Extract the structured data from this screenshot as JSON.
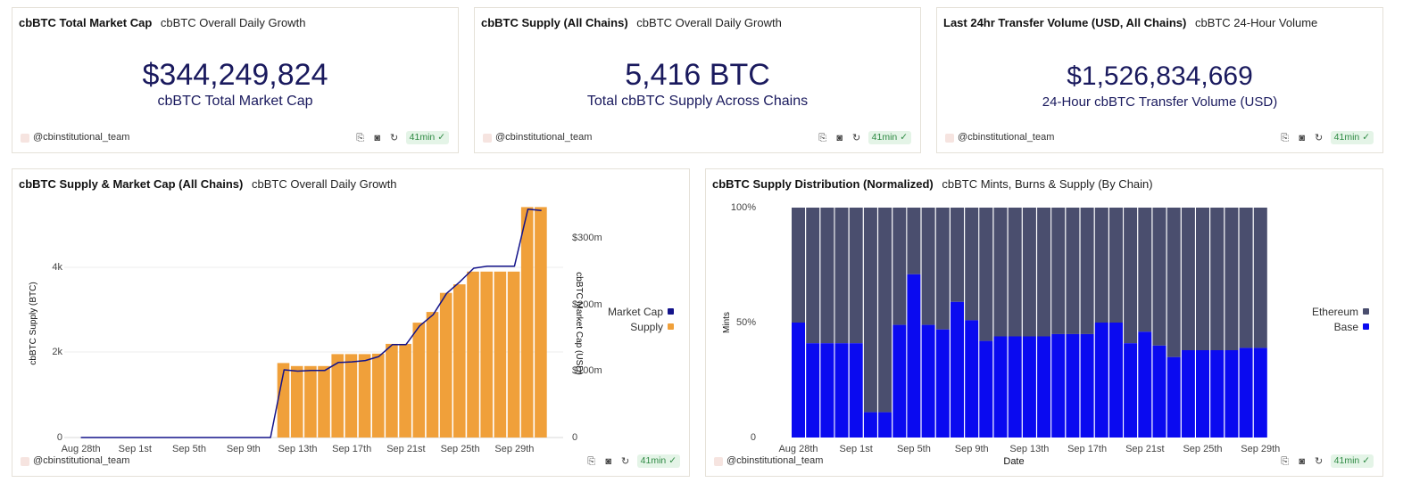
{
  "cards": {
    "market_cap": {
      "title": "cbBTC Total Market Cap",
      "subtitle": "cbBTC Overall Daily Growth",
      "value": "$344,249,824",
      "label": "cbBTC Total Market Cap"
    },
    "supply": {
      "title": "cbBTC Supply (All Chains)",
      "subtitle": "cbBTC Overall Daily Growth",
      "value": "5,416 BTC",
      "label": "Total cbBTC Supply Across Chains"
    },
    "volume": {
      "title": "Last 24hr Transfer Volume (USD, All Chains)",
      "subtitle": "cbBTC 24-Hour Volume",
      "value": "$1,526,834,669",
      "label": "24-Hour cbBTC Transfer Volume (USD)"
    },
    "supply_chart": {
      "title": "cbBTC Supply & Market Cap (All Chains)",
      "subtitle": "cbBTC Overall Daily Growth"
    },
    "distribution_chart": {
      "title": "cbBTC Supply Distribution (Normalized)",
      "subtitle": "cbBTC Mints, Burns & Supply (By Chain)"
    }
  },
  "footer": {
    "user": "@cbinstitutional_team",
    "refresh_label": "41min",
    "icons": [
      "embed-icon",
      "camera-icon",
      "refresh-icon",
      "check-circle-icon"
    ]
  },
  "colors": {
    "supply_bar": "#f0a03a",
    "market_cap_line": "#13138a",
    "ethereum": "#4a4e6e",
    "base": "#0a0af0",
    "value_text": "#1a1a5e"
  },
  "chart_data": [
    {
      "type": "bar",
      "x": [
        "Aug 28th",
        "Aug 29th",
        "Aug 30th",
        "Aug 31st",
        "Sep 1st",
        "Sep 2nd",
        "Sep 3rd",
        "Sep 4th",
        "Sep 5th",
        "Sep 6th",
        "Sep 7th",
        "Sep 8th",
        "Sep 9th",
        "Sep 10th",
        "Sep 11th",
        "Sep 12th",
        "Sep 13th",
        "Sep 14th",
        "Sep 15th",
        "Sep 16th",
        "Sep 17th",
        "Sep 18th",
        "Sep 19th",
        "Sep 20th",
        "Sep 21st",
        "Sep 22nd",
        "Sep 23rd",
        "Sep 24th",
        "Sep 25th",
        "Sep 26th",
        "Sep 27th",
        "Sep 28th",
        "Sep 29th",
        "Sep 30th",
        "Oct 1st"
      ],
      "x_ticks": [
        "Aug 28th",
        "Sep 1st",
        "Sep 5th",
        "Sep 9th",
        "Sep 13th",
        "Sep 17th",
        "Sep 21st",
        "Sep 25th",
        "Sep 29th"
      ],
      "series": [
        {
          "name": "Supply",
          "type": "bar",
          "axis": "left",
          "values": [
            0,
            0,
            0,
            0,
            0,
            0,
            0,
            0,
            0,
            0,
            0,
            0,
            0,
            0,
            0,
            1750,
            1680,
            1680,
            1680,
            1960,
            1960,
            1960,
            1970,
            2200,
            2200,
            2700,
            2950,
            3400,
            3600,
            3900,
            3900,
            3900,
            3900,
            5416,
            5416
          ]
        },
        {
          "name": "Market Cap",
          "type": "line",
          "axis": "right",
          "values": [
            0,
            0,
            0,
            0,
            0,
            0,
            0,
            0,
            0,
            0,
            0,
            0,
            0,
            0,
            0,
            102,
            100,
            101,
            101,
            113,
            114,
            116,
            122,
            140,
            140,
            168,
            185,
            217,
            235,
            255,
            258,
            258,
            258,
            344,
            342
          ]
        }
      ],
      "ylabel": "cbBTC Supply (BTC)",
      "ylim": [
        0,
        5416
      ],
      "y_ticks": [
        "0",
        "2k",
        "4k"
      ],
      "y2label": "cbBTC Market Cap (USD)",
      "y2lim": [
        0,
        344
      ],
      "y2_ticks": [
        "0",
        "$100m",
        "$200m",
        "$300m"
      ],
      "legend": "right",
      "legend_entries": [
        "Market Cap",
        "Supply"
      ],
      "grid": true
    },
    {
      "type": "bar",
      "stacked": true,
      "normalized": true,
      "x": [
        "Aug 28th",
        "Aug 29th",
        "Aug 30th",
        "Aug 31st",
        "Sep 1st",
        "Sep 2nd",
        "Sep 3rd",
        "Sep 4th",
        "Sep 5th",
        "Sep 6th",
        "Sep 7th",
        "Sep 8th",
        "Sep 9th",
        "Sep 10th",
        "Sep 11th",
        "Sep 12th",
        "Sep 13th",
        "Sep 14th",
        "Sep 15th",
        "Sep 16th",
        "Sep 17th",
        "Sep 18th",
        "Sep 19th",
        "Sep 20th",
        "Sep 21st",
        "Sep 22nd",
        "Sep 23rd",
        "Sep 24th",
        "Sep 25th",
        "Sep 26th",
        "Sep 27th",
        "Sep 28th",
        "Sep 29th"
      ],
      "x_ticks": [
        "Aug 28th",
        "Sep 1st",
        "Sep 5th",
        "Sep 9th",
        "Sep 13th",
        "Sep 17th",
        "Sep 21st",
        "Sep 25th",
        "Sep 29th"
      ],
      "series": [
        {
          "name": "Base",
          "values": [
            0.5,
            0.41,
            0.41,
            0.41,
            0.41,
            0.11,
            0.11,
            0.49,
            0.71,
            0.49,
            0.47,
            0.59,
            0.51,
            0.42,
            0.44,
            0.44,
            0.44,
            0.44,
            0.45,
            0.45,
            0.45,
            0.5,
            0.5,
            0.41,
            0.46,
            0.4,
            0.35,
            0.38,
            0.38,
            0.38,
            0.38,
            0.39,
            0.39
          ]
        },
        {
          "name": "Ethereum",
          "values": [
            0.5,
            0.59,
            0.59,
            0.59,
            0.59,
            0.89,
            0.89,
            0.51,
            0.29,
            0.51,
            0.53,
            0.41,
            0.49,
            0.58,
            0.56,
            0.56,
            0.56,
            0.56,
            0.55,
            0.55,
            0.55,
            0.5,
            0.5,
            0.59,
            0.54,
            0.6,
            0.65,
            0.62,
            0.62,
            0.62,
            0.62,
            0.61,
            0.61
          ]
        }
      ],
      "xlabel": "Date",
      "ylabel": "Mints",
      "ylim": [
        0,
        1
      ],
      "y_ticks": [
        "0",
        "50%",
        "100%"
      ],
      "legend": "right",
      "legend_entries": [
        "Ethereum",
        "Base"
      ],
      "grid": false
    }
  ]
}
